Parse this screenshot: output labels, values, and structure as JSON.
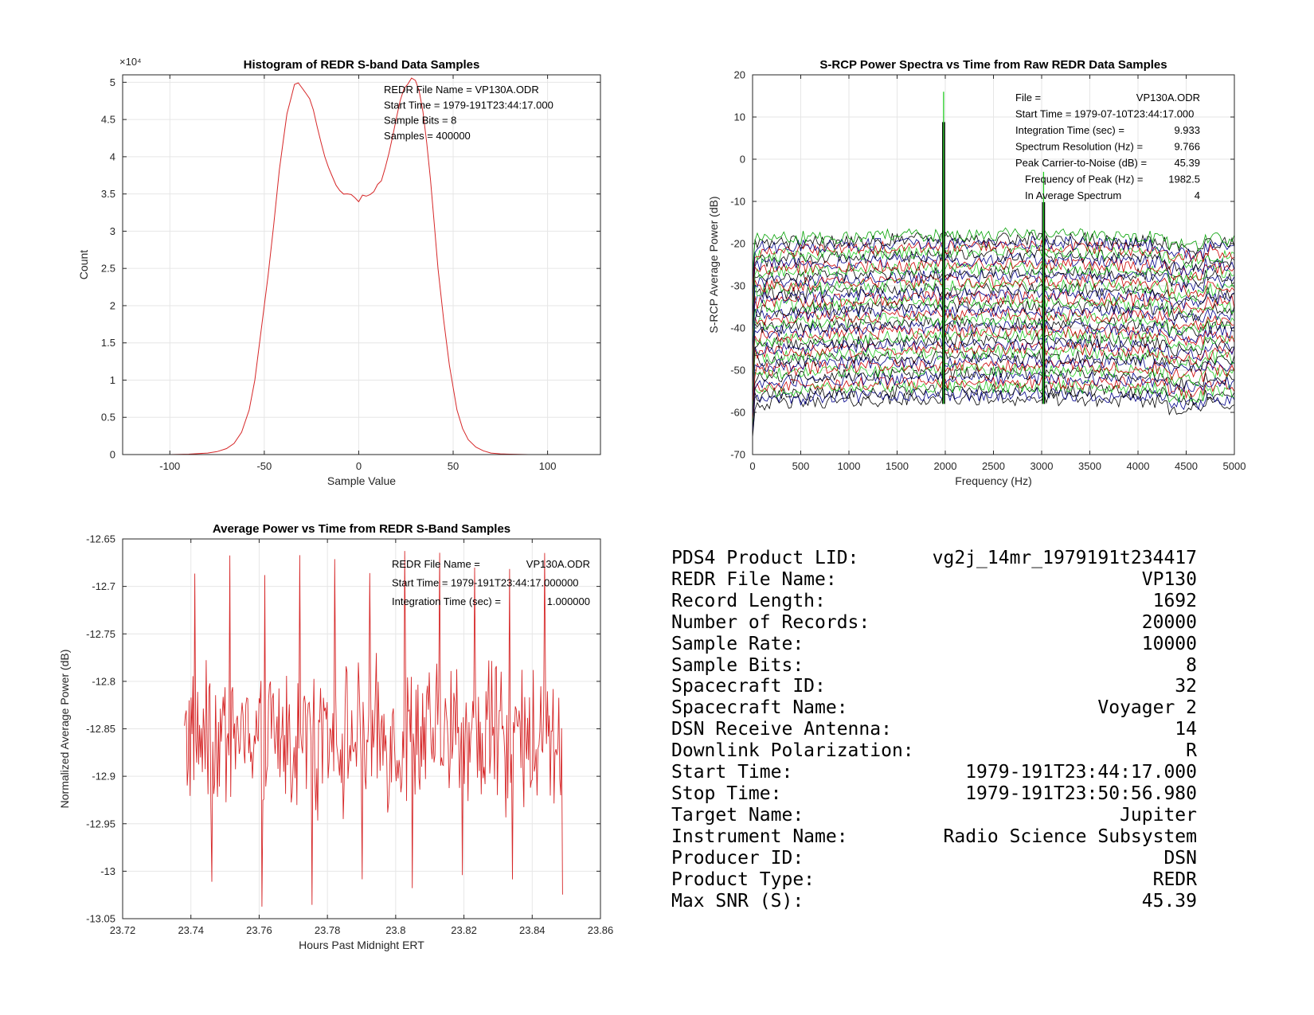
{
  "chart_data": [
    {
      "type": "line",
      "title": "Histogram of REDR S-band Data Samples",
      "xlabel": "Sample Value",
      "ylabel": "Count",
      "exponent_label": "×10⁴",
      "xlim": [
        -125,
        128
      ],
      "ylim": [
        0,
        5.1
      ],
      "xticks": [
        -100,
        -50,
        0,
        50,
        100
      ],
      "yticks": [
        0,
        0.5,
        1,
        1.5,
        2,
        2.5,
        3,
        3.5,
        4,
        4.5,
        5
      ],
      "ytick_labels": [
        "0",
        "0.5",
        "1",
        "1.5",
        "2",
        "2.5",
        "3",
        "3.5",
        "4",
        "4.5",
        "5"
      ],
      "grid": true,
      "color": "#d62728",
      "annotations": [
        "REDR File Name = VP130A.ODR",
        "Start Time = 1979-191T23:44:17.000",
        "Sample Bits = 8",
        "Samples = 400000"
      ],
      "series": [
        {
          "x": [
            -100,
            -90,
            -80,
            -75,
            -70,
            -66,
            -62,
            -58,
            -55,
            -52,
            -48,
            -45,
            -42,
            -40,
            -38,
            -36,
            -34,
            -32,
            -30,
            -28,
            -26,
            -24,
            -22,
            -20,
            -18,
            -16,
            -14,
            -12,
            -10,
            -8,
            -6,
            -4,
            -2,
            0,
            2,
            4,
            6,
            8,
            10,
            12,
            14,
            16,
            18,
            20,
            22,
            24,
            26,
            28,
            30,
            32,
            34,
            36,
            38,
            40,
            42,
            45,
            48,
            52,
            55,
            58,
            62,
            66,
            70,
            75,
            80,
            90,
            100,
            110,
            120
          ],
          "y": [
            0,
            0.005,
            0.02,
            0.04,
            0.08,
            0.15,
            0.3,
            0.6,
            1.0,
            1.6,
            2.4,
            3.1,
            3.8,
            4.2,
            4.55,
            4.8,
            4.95,
            5.0,
            4.95,
            4.88,
            4.75,
            4.6,
            4.4,
            4.2,
            4.0,
            3.85,
            3.72,
            3.6,
            3.55,
            3.5,
            3.48,
            3.5,
            3.45,
            3.42,
            3.47,
            3.45,
            3.5,
            3.55,
            3.6,
            3.7,
            3.85,
            4.05,
            4.3,
            4.55,
            4.75,
            4.9,
            5.0,
            5.05,
            5.0,
            4.9,
            4.6,
            4.2,
            3.7,
            3.1,
            2.5,
            1.8,
            1.2,
            0.6,
            0.35,
            0.2,
            0.1,
            0.05,
            0.02,
            0.01,
            0.005,
            0,
            0,
            0,
            0
          ]
        }
      ]
    },
    {
      "type": "line",
      "title": "S-RCP Power Spectra vs Time from Raw REDR Data Samples",
      "xlabel": "Frequency (Hz)",
      "ylabel": "S-RCP Average Power (dB)",
      "xlim": [
        0,
        5000
      ],
      "ylim": [
        -70,
        20
      ],
      "xticks": [
        0,
        500,
        1000,
        1500,
        2000,
        2500,
        3000,
        3500,
        4000,
        4500,
        5000
      ],
      "yticks": [
        -70,
        -60,
        -50,
        -40,
        -30,
        -20,
        -10,
        0,
        10,
        20
      ],
      "grid": true,
      "colors": [
        "#00a000",
        "#000000",
        "#00008b",
        "#cc0000",
        "#22cc22",
        "#000000",
        "#00008b",
        "#cc0000",
        "#22cc22",
        "#000000",
        "#00008b",
        "#cc0000",
        "#22cc22",
        "#000000",
        "#00008b",
        "#cc0000",
        "#22cc22",
        "#000000",
        "#00008b",
        "#cc0000",
        "#22cc22",
        "#000000",
        "#00008b",
        "#cc0000",
        "#22cc22",
        "#000000",
        "#00008b",
        "#cc0000",
        "#22cc22",
        "#000000",
        "#00008b",
        "#cc0000",
        "#22cc22",
        "#000000",
        "#00008b",
        "#cc0000",
        "#22cc22",
        "#000000",
        "#00008b",
        "#000000"
      ],
      "trace_count": 40,
      "trace_offset_top_db": -19,
      "trace_offset_step_db": -1.0,
      "carrier_peaks_hz": [
        1982.5,
        3020
      ],
      "carrier_peak_db": [
        16,
        -3
      ],
      "annotations": [
        {
          "label": "File =",
          "value": "VP130A.ODR"
        },
        {
          "label": "Start Time = 1979-07-10T23:44:17.000",
          "value": ""
        },
        {
          "label": "Integration Time (sec) =",
          "value": "9.933"
        },
        {
          "label": "Spectrum Resolution (Hz) =",
          "value": "9.766"
        },
        {
          "label": "Peak Carrier-to-Noise (dB) =",
          "value": "45.39"
        },
        {
          "label": "Frequency of Peak (Hz) =",
          "value": "1982.5"
        },
        {
          "label": "In Average Spectrum",
          "value": "4"
        }
      ]
    },
    {
      "type": "line",
      "title": "Average Power vs Time from REDR S-Band Samples",
      "xlabel": "Hours Past Midnight ERT",
      "ylabel": "Normalized Average Power (dB)",
      "xlim": [
        23.72,
        23.86
      ],
      "ylim": [
        -13.05,
        -12.65
      ],
      "xticks": [
        23.72,
        23.74,
        23.76,
        23.78,
        23.8,
        23.82,
        23.84,
        23.86
      ],
      "xtick_labels": [
        "23.72",
        "23.74",
        "23.76",
        "23.78",
        "23.8",
        "23.82",
        "23.84",
        "23.86"
      ],
      "yticks": [
        -13.05,
        -13,
        -12.95,
        -12.9,
        -12.85,
        -12.8,
        -12.75,
        -12.7,
        -12.65
      ],
      "ytick_labels": [
        "-13.05",
        "-13",
        "-12.95",
        "-12.9",
        "-12.85",
        "-12.8",
        "-12.75",
        "-12.7",
        "-12.65"
      ],
      "grid": true,
      "color": "#d62728",
      "x_start": 23.7381,
      "x_end": 23.8489,
      "mean": -12.86,
      "annotations": [
        {
          "label": "REDR File Name =",
          "value": "VP130A.ODR"
        },
        {
          "label": "Start Time = 1979-191T23:44:17.000000",
          "value": ""
        },
        {
          "label": "Integration Time (sec) =",
          "value": "1.000000"
        }
      ]
    }
  ],
  "info_table": [
    {
      "label": "PDS4 Product LID:",
      "value": "vg2j_14mr_1979191t234417"
    },
    {
      "label": "REDR File Name:",
      "value": "VP130"
    },
    {
      "label": "Record Length:",
      "value": "1692"
    },
    {
      "label": "Number of Records:",
      "value": "20000"
    },
    {
      "label": "Sample Rate:",
      "value": "10000"
    },
    {
      "label": "Sample Bits:",
      "value": "8"
    },
    {
      "label": "Spacecraft ID:",
      "value": "32"
    },
    {
      "label": "Spacecraft Name:",
      "value": "Voyager 2"
    },
    {
      "label": "DSN Receive Antenna:",
      "value": "14"
    },
    {
      "label": "Downlink Polarization:",
      "value": "R"
    },
    {
      "label": "Start Time:",
      "value": "1979-191T23:44:17.000"
    },
    {
      "label": "Stop Time:",
      "value": "1979-191T23:50:56.980"
    },
    {
      "label": "Target Name:",
      "value": "Jupiter"
    },
    {
      "label": "Instrument Name:",
      "value": "Radio Science Subsystem"
    },
    {
      "label": "Producer ID:",
      "value": "DSN"
    },
    {
      "label": "Product Type:",
      "value": "REDR"
    },
    {
      "label": "Max SNR (S):",
      "value": "45.39"
    }
  ]
}
